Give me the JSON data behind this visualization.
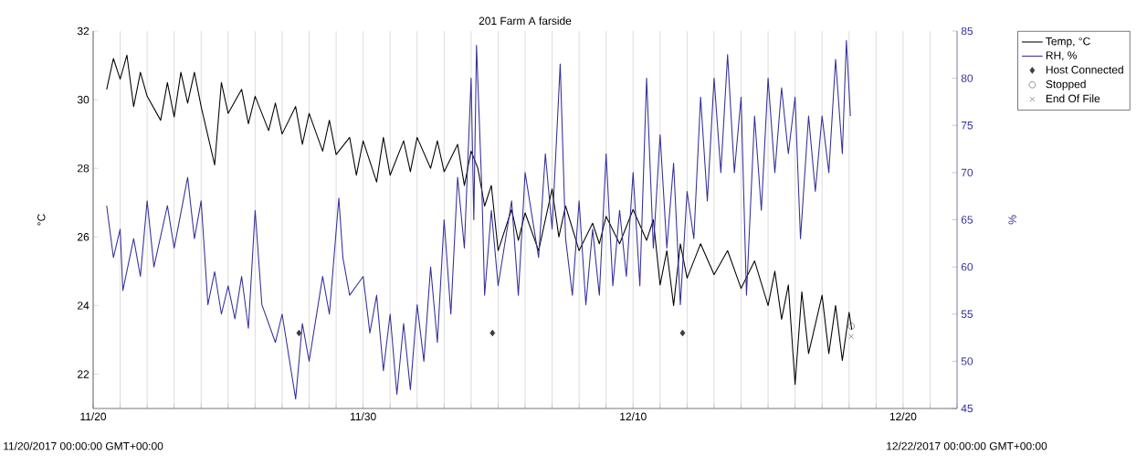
{
  "chart_data": {
    "type": "line",
    "title": "201 Farm A farside",
    "ylabel": "°C",
    "y2label": "%",
    "xlim": [
      "2017-11-20T00:00",
      "2017-12-22T00:00"
    ],
    "xticks": [
      {
        "value": "2017-11-20T00:00",
        "label": "11/20"
      },
      {
        "value": "2017-11-21T00:00",
        "label": null
      },
      {
        "value": "2017-11-22T00:00",
        "label": null
      },
      {
        "value": "2017-11-23T00:00",
        "label": null
      },
      {
        "value": "2017-11-24T00:00",
        "label": null
      },
      {
        "value": "2017-11-25T00:00",
        "label": null
      },
      {
        "value": "2017-11-26T00:00",
        "label": null
      },
      {
        "value": "2017-11-27T00:00",
        "label": null
      },
      {
        "value": "2017-11-28T00:00",
        "label": null
      },
      {
        "value": "2017-11-29T00:00",
        "label": null
      },
      {
        "value": "2017-11-30T00:00",
        "label": "11/30"
      },
      {
        "value": "2017-12-01T00:00",
        "label": null
      },
      {
        "value": "2017-12-02T00:00",
        "label": null
      },
      {
        "value": "2017-12-03T00:00",
        "label": null
      },
      {
        "value": "2017-12-04T00:00",
        "label": null
      },
      {
        "value": "2017-12-05T00:00",
        "label": null
      },
      {
        "value": "2017-12-06T00:00",
        "label": null
      },
      {
        "value": "2017-12-07T00:00",
        "label": null
      },
      {
        "value": "2017-12-08T00:00",
        "label": null
      },
      {
        "value": "2017-12-09T00:00",
        "label": null
      },
      {
        "value": "2017-12-10T00:00",
        "label": "12/10"
      },
      {
        "value": "2017-12-11T00:00",
        "label": null
      },
      {
        "value": "2017-12-12T00:00",
        "label": null
      },
      {
        "value": "2017-12-13T00:00",
        "label": null
      },
      {
        "value": "2017-12-14T00:00",
        "label": null
      },
      {
        "value": "2017-12-15T00:00",
        "label": null
      },
      {
        "value": "2017-12-16T00:00",
        "label": null
      },
      {
        "value": "2017-12-17T00:00",
        "label": null
      },
      {
        "value": "2017-12-18T00:00",
        "label": null
      },
      {
        "value": "2017-12-19T00:00",
        "label": null
      },
      {
        "value": "2017-12-20T00:00",
        "label": "12/20"
      },
      {
        "value": "2017-12-21T00:00",
        "label": null
      },
      {
        "value": "2017-12-22T00:00",
        "label": null
      }
    ],
    "ylim": [
      21,
      32
    ],
    "yticks": [
      22,
      24,
      26,
      28,
      30,
      32
    ],
    "y2lim": [
      45,
      85
    ],
    "y2ticks": [
      45,
      50,
      55,
      60,
      65,
      70,
      75,
      80,
      85
    ],
    "grid": "x",
    "legend": "top right",
    "annotations": [
      "11/20/2017 00:00:00 GMT+00:00",
      "12/22/2017 00:00:00 GMT+00:00"
    ],
    "series": [
      {
        "name": "Temp, °C",
        "color": "#000000",
        "x": [
          "2017-11-20T12:00",
          "2017-11-20T18:00",
          "2017-11-21T00:00",
          "2017-11-21T06:00",
          "2017-11-21T12:00",
          "2017-11-21T18:00",
          "2017-11-22T00:00",
          "2017-11-22T12:00",
          "2017-11-22T18:00",
          "2017-11-23T00:00",
          "2017-11-23T06:00",
          "2017-11-23T12:00",
          "2017-11-23T18:00",
          "2017-11-24T00:00",
          "2017-11-24T12:00",
          "2017-11-24T18:00",
          "2017-11-25T00:00",
          "2017-11-25T12:00",
          "2017-11-25T18:00",
          "2017-11-26T00:00",
          "2017-11-26T12:00",
          "2017-11-26T18:00",
          "2017-11-27T00:00",
          "2017-11-27T12:00",
          "2017-11-27T18:00",
          "2017-11-28T00:00",
          "2017-11-28T12:00",
          "2017-11-28T18:00",
          "2017-11-29T00:00",
          "2017-11-29T12:00",
          "2017-11-29T18:00",
          "2017-11-30T00:00",
          "2017-11-30T12:00",
          "2017-11-30T18:00",
          "2017-12-01T00:00",
          "2017-12-01T12:00",
          "2017-12-01T18:00",
          "2017-12-02T00:00",
          "2017-12-02T12:00",
          "2017-12-02T18:00",
          "2017-12-03T00:00",
          "2017-12-03T12:00",
          "2017-12-03T18:00",
          "2017-12-04T00:00",
          "2017-12-04T06:00",
          "2017-12-04T12:00",
          "2017-12-04T18:00",
          "2017-12-05T00:00",
          "2017-12-05T12:00",
          "2017-12-05T18:00",
          "2017-12-06T00:00",
          "2017-12-06T12:00",
          "2017-12-07T00:00",
          "2017-12-07T06:00",
          "2017-12-07T12:00",
          "2017-12-08T00:00",
          "2017-12-08T12:00",
          "2017-12-08T18:00",
          "2017-12-09T00:00",
          "2017-12-09T12:00",
          "2017-12-10T00:00",
          "2017-12-10T12:00",
          "2017-12-10T18:00",
          "2017-12-11T00:00",
          "2017-12-11T06:00",
          "2017-12-11T12:00",
          "2017-12-11T18:00",
          "2017-12-12T00:00",
          "2017-12-12T12:00",
          "2017-12-13T00:00",
          "2017-12-13T12:00",
          "2017-12-14T00:00",
          "2017-12-14T12:00",
          "2017-12-15T00:00",
          "2017-12-15T06:00",
          "2017-12-15T12:00",
          "2017-12-15T18:00",
          "2017-12-16T00:00",
          "2017-12-16T06:00",
          "2017-12-16T12:00",
          "2017-12-17T00:00",
          "2017-12-17T06:00",
          "2017-12-17T12:00",
          "2017-12-17T18:00",
          "2017-12-18T00:00",
          "2017-12-18T02:24"
        ],
        "values": [
          30.3,
          31.2,
          30.6,
          31.3,
          29.8,
          30.8,
          30.1,
          29.4,
          30.5,
          29.5,
          30.8,
          29.9,
          30.8,
          29.8,
          28.1,
          30.5,
          29.6,
          30.3,
          29.3,
          30.1,
          29.1,
          29.9,
          29.0,
          29.8,
          28.7,
          29.6,
          28.5,
          29.4,
          28.4,
          28.9,
          27.8,
          28.8,
          27.6,
          28.9,
          27.8,
          28.8,
          27.9,
          28.9,
          28.0,
          28.8,
          27.9,
          28.7,
          27.5,
          28.5,
          28.0,
          26.9,
          27.5,
          25.6,
          26.8,
          25.9,
          26.7,
          25.6,
          27.4,
          26.0,
          26.9,
          25.6,
          26.4,
          25.8,
          26.6,
          25.8,
          26.8,
          25.9,
          26.5,
          24.6,
          25.6,
          24.0,
          25.8,
          24.8,
          25.8,
          24.9,
          25.6,
          24.5,
          25.3,
          24.0,
          25.0,
          23.6,
          24.6,
          21.7,
          24.4,
          22.6,
          24.3,
          22.6,
          24.0,
          22.4,
          23.8,
          23.3
        ]
      },
      {
        "name": "RH, %",
        "axis": "y2",
        "color": "#35309a",
        "x": [
          "2017-11-20T12:00",
          "2017-11-20T18:00",
          "2017-11-21T00:00",
          "2017-11-21T02:24",
          "2017-11-21T12:00",
          "2017-11-21T18:00",
          "2017-11-22T00:00",
          "2017-11-22T06:00",
          "2017-11-22T18:00",
          "2017-11-23T00:00",
          "2017-11-23T12:00",
          "2017-11-23T18:00",
          "2017-11-24T00:00",
          "2017-11-24T06:00",
          "2017-11-24T12:00",
          "2017-11-24T18:00",
          "2017-11-25T00:00",
          "2017-11-25T06:00",
          "2017-11-25T12:00",
          "2017-11-25T18:00",
          "2017-11-26T00:00",
          "2017-11-26T06:00",
          "2017-11-26T18:00",
          "2017-11-27T00:00",
          "2017-11-27T12:00",
          "2017-11-27T18:00",
          "2017-11-28T00:00",
          "2017-11-28T12:00",
          "2017-11-28T18:00",
          "2017-11-29T02:24",
          "2017-11-29T06:00",
          "2017-11-29T12:00",
          "2017-11-30T00:00",
          "2017-11-30T06:00",
          "2017-11-30T12:00",
          "2017-11-30T18:00",
          "2017-12-01T00:00",
          "2017-12-01T06:00",
          "2017-12-01T12:00",
          "2017-12-01T18:00",
          "2017-12-02T00:00",
          "2017-12-02T06:00",
          "2017-12-02T12:00",
          "2017-12-02T18:00",
          "2017-12-03T00:00",
          "2017-12-03T06:00",
          "2017-12-03T12:00",
          "2017-12-03T18:00",
          "2017-12-04T00:00",
          "2017-12-04T02:24",
          "2017-12-04T04:48",
          "2017-12-04T09:36",
          "2017-12-04T12:00",
          "2017-12-04T18:00",
          "2017-12-05T00:00",
          "2017-12-05T12:00",
          "2017-12-05T18:00",
          "2017-12-06T00:00",
          "2017-12-06T12:00",
          "2017-12-06T18:00",
          "2017-12-07T00:00",
          "2017-12-07T07:12",
          "2017-12-07T12:00",
          "2017-12-07T18:00",
          "2017-12-08T00:00",
          "2017-12-08T06:00",
          "2017-12-08T12:00",
          "2017-12-08T18:00",
          "2017-12-09T00:00",
          "2017-12-09T06:00",
          "2017-12-09T12:00",
          "2017-12-09T18:00",
          "2017-12-10T00:00",
          "2017-12-10T06:00",
          "2017-12-10T12:00",
          "2017-12-10T18:00",
          "2017-12-11T00:00",
          "2017-12-11T06:00",
          "2017-12-11T12:00",
          "2017-12-11T18:00",
          "2017-12-12T00:00",
          "2017-12-12T06:00",
          "2017-12-12T12:00",
          "2017-12-12T18:00",
          "2017-12-13T00:00",
          "2017-12-13T06:00",
          "2017-12-13T12:00",
          "2017-12-13T18:00",
          "2017-12-14T00:00",
          "2017-12-14T04:48",
          "2017-12-14T12:00",
          "2017-12-14T18:00",
          "2017-12-15T00:00",
          "2017-12-15T06:00",
          "2017-12-15T12:00",
          "2017-12-15T18:00",
          "2017-12-16T00:00",
          "2017-12-16T04:48",
          "2017-12-16T12:00",
          "2017-12-16T18:00",
          "2017-12-17T00:00",
          "2017-12-17T06:00",
          "2017-12-17T12:00",
          "2017-12-17T18:00",
          "2017-12-17T21:36",
          "2017-12-18T01:12"
        ],
        "values": [
          66.5,
          61,
          64,
          57.5,
          63,
          59,
          67,
          60,
          66.5,
          62,
          69.5,
          63,
          67,
          56,
          59.5,
          55,
          58,
          54.5,
          59,
          53.5,
          66,
          56,
          52,
          55,
          46,
          54,
          50,
          59,
          55,
          67.3,
          61,
          57,
          59,
          53,
          57,
          49,
          55,
          46.5,
          54,
          47,
          56,
          50,
          60,
          52,
          65,
          55,
          69.5,
          62,
          80,
          65,
          83.5,
          68,
          57,
          66,
          58,
          67,
          57,
          70,
          61,
          72,
          64,
          81.5,
          63,
          57,
          67,
          56,
          64,
          57,
          72,
          58,
          66,
          59,
          70,
          58,
          80,
          62,
          74,
          62,
          71,
          56,
          68,
          63,
          78,
          67,
          80,
          70,
          82.5,
          70,
          78,
          57,
          76,
          66,
          80,
          70,
          79,
          72,
          78,
          63,
          76,
          68,
          76,
          70,
          82,
          72,
          84,
          76
        ]
      },
      {
        "name": "Host Connected",
        "type": "scatter",
        "marker": "diamond",
        "color": "#3a3a3a",
        "x": [
          "2017-11-27T15:00",
          "2017-12-04T19:00",
          "2017-12-11T20:00"
        ],
        "values": [
          23.2,
          23.2,
          23.2
        ]
      },
      {
        "name": "Stopped",
        "type": "scatter",
        "marker": "circle",
        "color": "#3a3a3a",
        "x": [
          "2017-12-18T02:00"
        ],
        "values": [
          23.4
        ]
      },
      {
        "name": "End Of File",
        "type": "scatter",
        "marker": "cross",
        "color": "#3a3a3a",
        "x": [
          "2017-12-18T02:00"
        ],
        "values": [
          23.1
        ]
      }
    ]
  }
}
